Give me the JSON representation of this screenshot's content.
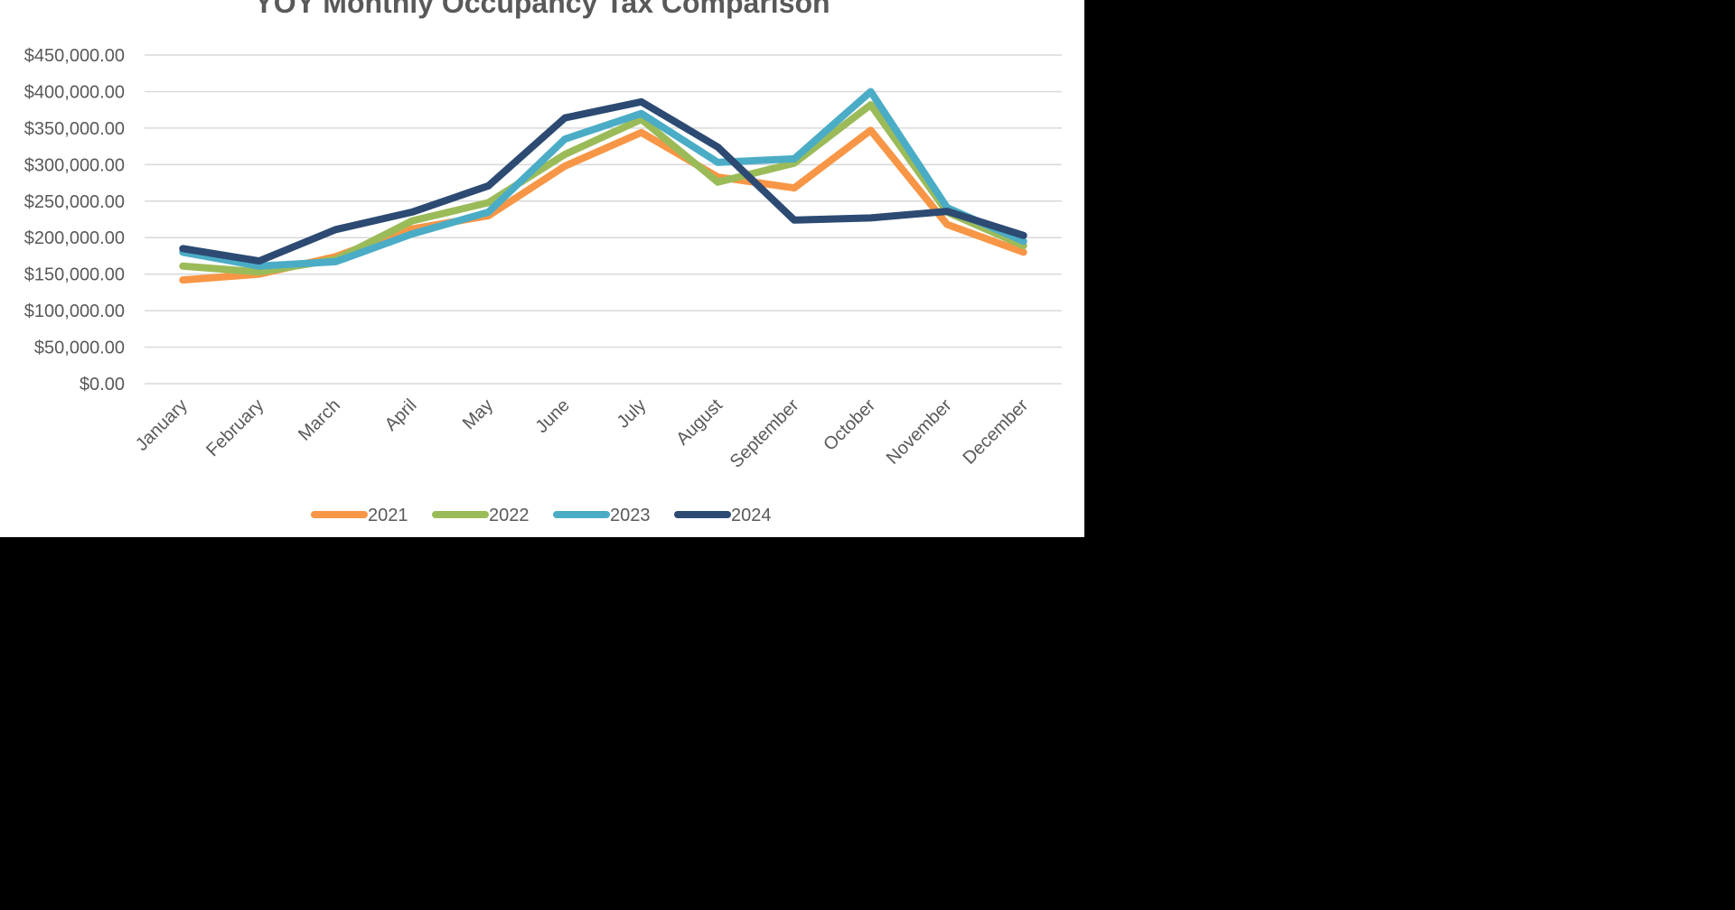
{
  "chart_data": {
    "type": "line",
    "title": "YOY Monthly Occupancy Tax Comparison",
    "categories": [
      "January",
      "February",
      "March",
      "April",
      "May",
      "June",
      "July",
      "August",
      "September",
      "October",
      "November",
      "December"
    ],
    "series": [
      {
        "name": "2021",
        "color": "#f79646",
        "values": [
          142000,
          150000,
          174000,
          212000,
          230000,
          298000,
          344000,
          283000,
          268000,
          347000,
          218000,
          180000
        ]
      },
      {
        "name": "2022",
        "color": "#9bbb59",
        "values": [
          161000,
          153000,
          170000,
          223000,
          248000,
          314000,
          362000,
          276000,
          302000,
          382000,
          235000,
          189000
        ]
      },
      {
        "name": "2023",
        "color": "#4bacc6",
        "values": [
          180000,
          161000,
          167000,
          205000,
          235000,
          335000,
          370000,
          303000,
          308000,
          400000,
          241000,
          195000
        ]
      },
      {
        "name": "2024",
        "color": "#2c4a72",
        "values": [
          185000,
          168000,
          211000,
          235000,
          271000,
          364000,
          386000,
          324000,
          224000,
          227000,
          236000,
          203000
        ]
      }
    ],
    "ylim": [
      0,
      450000
    ],
    "yticks": [
      {
        "value": 0,
        "label": "$0.00"
      },
      {
        "value": 50000,
        "label": "$50,000.00"
      },
      {
        "value": 100000,
        "label": "$100,000.00"
      },
      {
        "value": 150000,
        "label": "$150,000.00"
      },
      {
        "value": 200000,
        "label": "$200,000.00"
      },
      {
        "value": 250000,
        "label": "$250,000.00"
      },
      {
        "value": 300000,
        "label": "$300,000.00"
      },
      {
        "value": 350000,
        "label": "$350,000.00"
      },
      {
        "value": 400000,
        "label": "$400,000.00"
      },
      {
        "value": 450000,
        "label": "$450,000.00"
      }
    ],
    "grid": true,
    "legend": "bottom"
  }
}
